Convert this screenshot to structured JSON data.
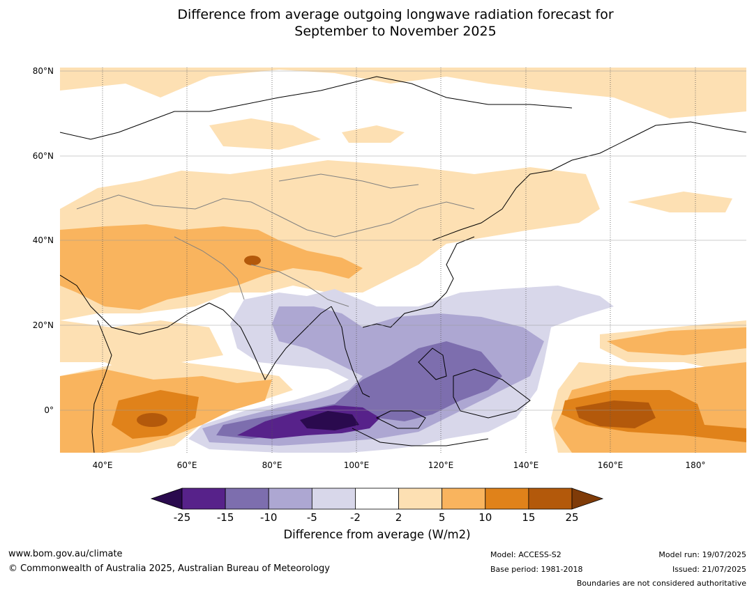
{
  "title_line1": "Difference from average outgoing longwave radiation forecast for",
  "title_line2": "September to November 2025",
  "map": {
    "lat_labels": [
      "80°N",
      "60°N",
      "40°N",
      "20°N",
      "0°"
    ],
    "lon_labels": [
      "40°E",
      "60°E",
      "80°E",
      "100°E",
      "120°E",
      "140°E",
      "160°E",
      "180°"
    ],
    "lon_range": [
      30,
      192
    ],
    "lat_range": [
      -10,
      81
    ]
  },
  "colorbar": {
    "ticks": [
      "-25",
      "-15",
      "-10",
      "-5",
      "-2",
      "2",
      "5",
      "10",
      "15",
      "25"
    ],
    "colors": [
      "#2a0a4e",
      "#57228a",
      "#7d6eae",
      "#ada7d2",
      "#d8d7ea",
      "#ffffff",
      "#fde0b3",
      "#f9b45e",
      "#e0821a",
      "#b3590b",
      "#7f3b08"
    ],
    "label": "Difference from average (W/m2)"
  },
  "footer": {
    "website": "www.bom.gov.au/climate",
    "copyright": "© Commonwealth of Australia 2025, Australian Bureau of Meteorology",
    "model": "Model: ACCESS-S2",
    "base_period": "Base period: 1981-2018",
    "model_run": "Model run: 19/07/2025",
    "issued": "Issued: 21/07/2025",
    "disclaimer": "Boundaries are not considered authoritative"
  }
}
